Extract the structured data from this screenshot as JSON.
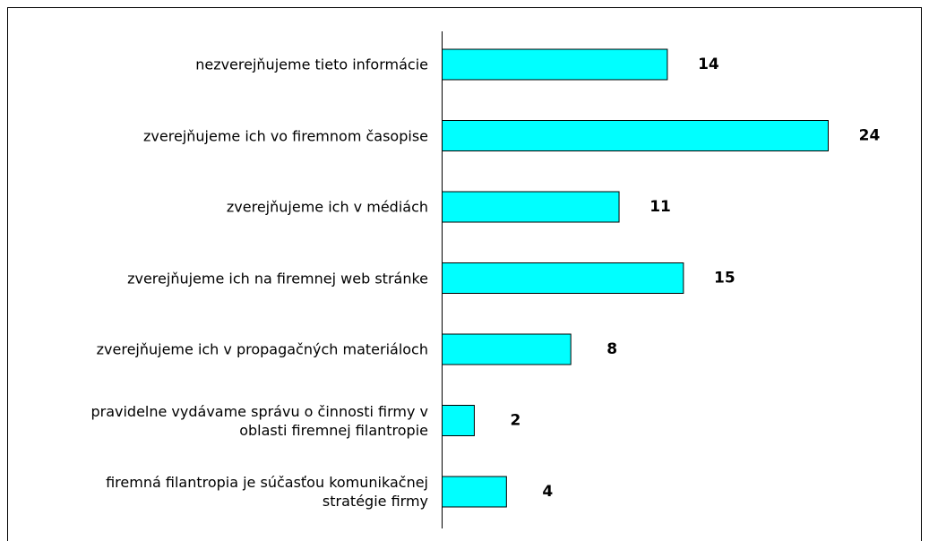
{
  "chart_data": {
    "type": "bar",
    "orientation": "horizontal",
    "categories": [
      "nezverejňujeme tieto informácie",
      "zverejňujeme ich vo firemnom časopise",
      "zverejňujeme ich v médiách",
      "zverejňujeme ich na firemnej web stránke",
      "zverejňujeme ich v propagačných materiáloch",
      "pravidelne vydávame správu o činnosti firmy v\noblasti firemnej filantropie",
      "firemná filantropia je súčasťou komunikačnej\nstratégie firmy"
    ],
    "values": [
      14,
      24,
      11,
      15,
      8,
      2,
      4
    ],
    "color": "#00ffff",
    "xlim": [
      0,
      24
    ]
  }
}
